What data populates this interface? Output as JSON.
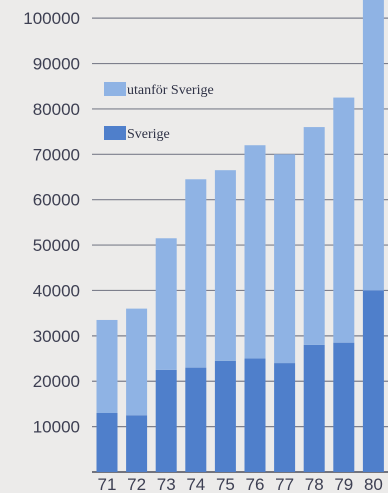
{
  "chart_data": {
    "type": "bar",
    "stacked": true,
    "categories": [
      "71",
      "72",
      "73",
      "74",
      "75",
      "76",
      "77",
      "78",
      "79",
      "80"
    ],
    "series": [
      {
        "name": "Sverige",
        "values": [
          13000,
          12500,
          22500,
          23000,
          24500,
          25000,
          24000,
          28000,
          28500,
          40000
        ],
        "color": "#4f7fcb"
      },
      {
        "name": "utanför Sverige",
        "values": [
          20500,
          23500,
          29000,
          41500,
          42000,
          47000,
          46000,
          48000,
          54000,
          65000
        ],
        "color": "#8fb3e4"
      }
    ],
    "yticks": [
      "10000",
      "20000",
      "30000",
      "40000",
      "50000",
      "60000",
      "70000",
      "80000",
      "90000",
      "100000"
    ],
    "ylim": [
      0,
      104000
    ],
    "grid": true,
    "legend_position": "upper-left"
  }
}
